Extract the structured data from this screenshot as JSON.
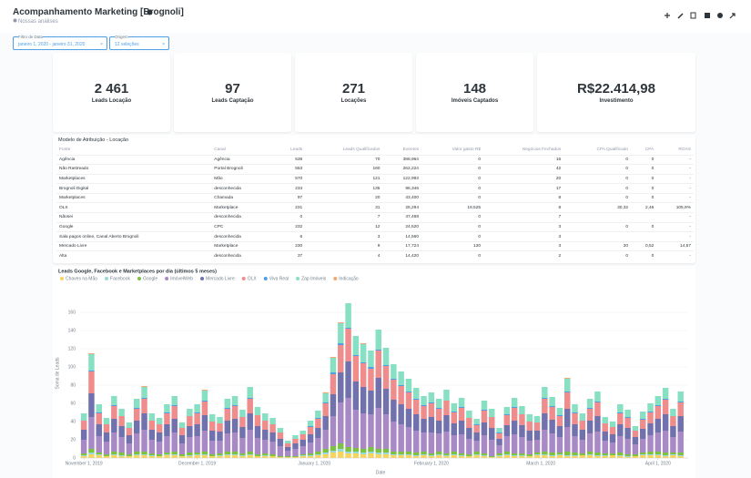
{
  "header": {
    "title": "Acompanhamento Marketing [Brognoli]",
    "subtitle": "Nossas análises"
  },
  "filters": [
    {
      "label": "Filtro de Data",
      "value": "janeiro 1, 2020 - janeiro 31, 2020"
    },
    {
      "label": "Origem",
      "value": "12 seleções"
    }
  ],
  "cards": [
    {
      "value": "2 461",
      "label": "Leads Locação"
    },
    {
      "value": "97",
      "label": "Leads Captação"
    },
    {
      "value": "271",
      "label": "Locações"
    },
    {
      "value": "148",
      "label": "Imóveis Captados"
    },
    {
      "value": "R$22.414,98",
      "label": "Investimento"
    }
  ],
  "table": {
    "title": "Modelo de Atribuição - Locação",
    "columns": [
      "Fonte",
      "Canal",
      "Leads",
      "Leads Qualificados",
      "Eventos",
      "Valor gasto R$",
      "Negócios Fechados",
      "CPA Qualificado",
      "CPA",
      "ROAS"
    ],
    "rows": [
      [
        "Agência",
        "Agência",
        "538",
        "70",
        "388,964",
        "0",
        "16",
        "0",
        "0",
        "-"
      ],
      [
        "Não Rastreado",
        "Portal Brognoli",
        "553",
        "160",
        "262,224",
        "0",
        "42",
        "0",
        "0",
        "-"
      ],
      [
        "Marketplaces",
        "Mão",
        "570",
        "121",
        "122,993",
        "0",
        "20",
        "0",
        "0",
        "-"
      ],
      [
        "Brognoli Digital",
        "desconhecida",
        "234",
        "135",
        "96,346",
        "0",
        "17",
        "0",
        "0",
        "-"
      ],
      [
        "Marketplaces",
        "Chamada",
        "97",
        "20",
        "43,400",
        "0",
        "8",
        "0",
        "0",
        "-"
      ],
      [
        "OLX",
        "Marketplace",
        "231",
        "31",
        "25,294",
        "19,525",
        "8",
        "30,32",
        "2,46",
        "105,9%"
      ],
      [
        "Nãosei",
        "desconhecida",
        "0",
        "7",
        "47,468",
        "0",
        "7",
        "",
        "",
        "-"
      ],
      [
        "Google",
        "CPC",
        "232",
        "12",
        "24,520",
        "0",
        "3",
        "0",
        "0",
        "-"
      ],
      [
        "Sala pagos online, Canal Aberto Brognoli",
        "desconhecida",
        "6",
        "3",
        "14,560",
        "0",
        "3",
        "",
        "",
        "-"
      ],
      [
        "Mercado Livre",
        "Marketplace",
        "230",
        "9",
        "17,724",
        "120",
        "3",
        "20",
        "0,52",
        "14,57"
      ],
      [
        "Alta",
        "desconhecida",
        "37",
        "4",
        "14,420",
        "0",
        "2",
        "0",
        "0",
        "-"
      ]
    ]
  },
  "chart_data": {
    "type": "stacked-bar",
    "title": "Leads Google, Facebook e Marketplaces por dia (últimos 5 meses)",
    "x_label": "Date",
    "y_label": "Soma de Leads",
    "x": [
      "2019-11-01",
      "2019-11-03",
      "2019-11-05",
      "2019-11-07",
      "2019-11-09",
      "2019-11-11",
      "2019-11-13",
      "2019-11-15",
      "2019-11-17",
      "2019-11-19",
      "2019-11-21",
      "2019-11-23",
      "2019-11-25",
      "2019-11-27",
      "2019-11-29",
      "2019-12-01",
      "2019-12-03",
      "2019-12-05",
      "2019-12-07",
      "2019-12-09",
      "2019-12-11",
      "2019-12-13",
      "2019-12-15",
      "2019-12-17",
      "2019-12-19",
      "2019-12-21",
      "2019-12-23",
      "2019-12-25",
      "2019-12-27",
      "2019-12-29",
      "2019-12-31",
      "2020-01-02",
      "2020-01-04",
      "2020-01-06",
      "2020-01-08",
      "2020-01-10",
      "2020-01-12",
      "2020-01-14",
      "2020-01-16",
      "2020-01-18",
      "2020-01-20",
      "2020-01-22",
      "2020-01-24",
      "2020-01-26",
      "2020-01-28",
      "2020-01-30",
      "2020-02-01",
      "2020-02-03",
      "2020-02-05",
      "2020-02-07",
      "2020-02-09",
      "2020-02-11",
      "2020-02-13",
      "2020-02-15",
      "2020-02-17",
      "2020-02-19",
      "2020-02-21",
      "2020-02-23",
      "2020-02-25",
      "2020-02-27",
      "2020-02-29",
      "2020-03-02",
      "2020-03-04",
      "2020-03-06",
      "2020-03-08",
      "2020-03-10",
      "2020-03-12",
      "2020-03-14",
      "2020-03-16",
      "2020-03-18",
      "2020-03-20",
      "2020-03-22",
      "2020-03-24",
      "2020-03-26",
      "2020-03-28",
      "2020-03-30",
      "2020-04-01",
      "2020-04-03",
      "2020-04-05",
      "2020-04-07"
    ],
    "xlim": [
      "2019-10-31",
      "2020-04-09"
    ],
    "xticks": [
      {
        "value": "2019-11-01",
        "label": "November 1, 2019"
      },
      {
        "value": "2019-12-01",
        "label": "December 1, 2019"
      },
      {
        "value": "2020-01-01",
        "label": "January 1, 2020"
      },
      {
        "value": "2020-02-01",
        "label": "February 1, 2020"
      },
      {
        "value": "2020-03-01",
        "label": "March 1, 2020"
      },
      {
        "value": "2020-04-01",
        "label": "April 1, 2020"
      }
    ],
    "ylim": [
      0,
      185
    ],
    "yticks": [
      0,
      20,
      40,
      60,
      80,
      100,
      120,
      140,
      160
    ],
    "grid": true,
    "series": [
      {
        "name": "Chaves na Mão",
        "color": "#f9d45c",
        "values": [
          2,
          4,
          3,
          2,
          3,
          2,
          2,
          3,
          3,
          2,
          2,
          3,
          3,
          2,
          2,
          3,
          3,
          2,
          2,
          3,
          3,
          2,
          3,
          2,
          2,
          2,
          1,
          1,
          1,
          2,
          2,
          3,
          4,
          6,
          7,
          5,
          5,
          4,
          5,
          4,
          4,
          3,
          3,
          3,
          2,
          3,
          2,
          3,
          2,
          3,
          2,
          2,
          3,
          2,
          1,
          2,
          3,
          2,
          2,
          2,
          3,
          3,
          2,
          3,
          2,
          2,
          3,
          3,
          2,
          2,
          3,
          2,
          1,
          2,
          3,
          3,
          3,
          2,
          3,
          2
        ]
      },
      {
        "name": "Facebook",
        "color": "#98d9d9",
        "values": [
          1,
          2,
          1,
          0,
          1,
          1,
          0,
          1,
          1,
          1,
          0,
          1,
          1,
          0,
          1,
          1,
          1,
          0,
          1,
          1,
          1,
          1,
          1,
          0,
          1,
          0,
          0,
          0,
          0,
          1,
          1,
          1,
          2,
          2,
          3,
          2,
          2,
          2,
          2,
          2,
          2,
          1,
          1,
          1,
          1,
          1,
          1,
          1,
          1,
          1,
          1,
          0,
          1,
          1,
          0,
          1,
          1,
          1,
          1,
          0,
          1,
          1,
          1,
          1,
          1,
          1,
          0,
          1,
          1,
          1,
          0,
          1,
          1,
          0,
          1,
          1,
          1,
          1,
          1,
          1
        ]
      },
      {
        "name": "Google",
        "color": "#7bc142",
        "values": [
          2,
          4,
          2,
          2,
          3,
          3,
          2,
          3,
          3,
          2,
          2,
          2,
          3,
          2,
          3,
          2,
          3,
          2,
          2,
          3,
          3,
          2,
          3,
          2,
          2,
          2,
          1,
          1,
          1,
          1,
          2,
          3,
          4,
          5,
          6,
          5,
          4,
          4,
          5,
          4,
          4,
          3,
          3,
          3,
          3,
          3,
          2,
          3,
          2,
          3,
          2,
          2,
          3,
          2,
          1,
          2,
          3,
          2,
          2,
          2,
          2,
          3,
          3,
          2,
          4,
          3,
          2,
          3,
          3,
          2,
          2,
          3,
          2,
          2,
          2,
          3,
          3,
          3,
          2,
          3
        ]
      },
      {
        "name": "ImóvelWeb",
        "color": "#a989c5",
        "values": [
          15,
          35,
          18,
          14,
          21,
          17,
          12,
          20,
          24,
          15,
          14,
          18,
          21,
          12,
          17,
          18,
          23,
          15,
          14,
          20,
          21,
          17,
          24,
          18,
          15,
          14,
          11,
          6,
          8,
          9,
          12,
          15,
          21,
          33,
          45,
          54,
          42,
          39,
          36,
          45,
          38,
          33,
          30,
          27,
          24,
          21,
          23,
          20,
          24,
          18,
          21,
          17,
          12,
          20,
          18,
          9,
          17,
          21,
          18,
          15,
          14,
          24,
          21,
          17,
          27,
          18,
          15,
          20,
          23,
          14,
          12,
          18,
          17,
          11,
          15,
          18,
          21,
          24,
          17,
          23
        ]
      },
      {
        "name": "Mercado Livre",
        "color": "#7172ad",
        "values": [
          11,
          26,
          13,
          10,
          15,
          12,
          9,
          14,
          18,
          11,
          10,
          13,
          15,
          9,
          12,
          13,
          17,
          11,
          10,
          14,
          15,
          12,
          18,
          13,
          11,
          10,
          8,
          4,
          6,
          7,
          9,
          11,
          15,
          24,
          33,
          40,
          31,
          29,
          26,
          33,
          28,
          24,
          22,
          20,
          18,
          15,
          17,
          14,
          18,
          13,
          15,
          12,
          9,
          14,
          13,
          7,
          12,
          15,
          13,
          11,
          10,
          18,
          15,
          12,
          20,
          13,
          11,
          14,
          17,
          10,
          9,
          13,
          12,
          8,
          11,
          13,
          15,
          18,
          12,
          17
        ]
      },
      {
        "name": "OLX",
        "color": "#ef8c8c",
        "values": [
          10,
          24,
          12,
          9,
          14,
          11,
          8,
          13,
          16,
          10,
          9,
          12,
          14,
          8,
          11,
          12,
          15,
          10,
          9,
          13,
          14,
          11,
          16,
          12,
          10,
          9,
          7,
          4,
          5,
          6,
          8,
          10,
          14,
          22,
          30,
          36,
          28,
          26,
          24,
          30,
          25,
          22,
          20,
          18,
          16,
          14,
          15,
          13,
          16,
          12,
          14,
          11,
          8,
          13,
          12,
          6,
          11,
          14,
          12,
          10,
          9,
          16,
          14,
          11,
          18,
          12,
          10,
          13,
          15,
          9,
          8,
          12,
          11,
          7,
          10,
          12,
          14,
          16,
          11,
          15
        ]
      },
      {
        "name": "Viva Real",
        "color": "#509ee3",
        "values": [
          0,
          1,
          1,
          0,
          1,
          0,
          0,
          1,
          1,
          0,
          0,
          1,
          1,
          0,
          0,
          1,
          1,
          0,
          0,
          1,
          1,
          0,
          1,
          0,
          0,
          0,
          0,
          0,
          0,
          0,
          1,
          1,
          1,
          2,
          2,
          1,
          1,
          1,
          2,
          1,
          1,
          1,
          1,
          1,
          1,
          1,
          1,
          1,
          0,
          1,
          1,
          0,
          1,
          1,
          0,
          1,
          1,
          1,
          0,
          0,
          0,
          1,
          1,
          1,
          1,
          1,
          0,
          1,
          1,
          0,
          0,
          1,
          1,
          0,
          1,
          1,
          1,
          1,
          0,
          1
        ]
      },
      {
        "name": "Zap Imóveis",
        "color": "#88e0c4",
        "values": [
          8,
          18,
          9,
          7,
          10,
          8,
          6,
          10,
          12,
          8,
          7,
          9,
          10,
          6,
          8,
          9,
          11,
          8,
          7,
          10,
          10,
          8,
          12,
          9,
          8,
          7,
          5,
          3,
          4,
          4,
          6,
          8,
          10,
          16,
          22,
          27,
          21,
          20,
          18,
          22,
          19,
          16,
          15,
          14,
          12,
          10,
          11,
          10,
          12,
          9,
          10,
          8,
          6,
          10,
          9,
          5,
          8,
          10,
          9,
          8,
          7,
          12,
          10,
          8,
          14,
          9,
          8,
          10,
          11,
          7,
          6,
          9,
          8,
          5,
          8,
          9,
          10,
          12,
          8,
          11
        ]
      },
      {
        "name": "Indicação",
        "color": "#f2a86f",
        "values": [
          0,
          1,
          0,
          0,
          0,
          0,
          0,
          0,
          1,
          0,
          0,
          0,
          0,
          0,
          0,
          0,
          1,
          0,
          0,
          0,
          0,
          0,
          0,
          0,
          0,
          0,
          0,
          0,
          0,
          0,
          0,
          0,
          1,
          1,
          1,
          0,
          0,
          1,
          0,
          0,
          0,
          0,
          0,
          0,
          0,
          0,
          0,
          0,
          0,
          0,
          0,
          0,
          0,
          0,
          0,
          0,
          0,
          0,
          0,
          0,
          0,
          0,
          0,
          0,
          1,
          0,
          0,
          0,
          0,
          0,
          0,
          0,
          0,
          0,
          0,
          0,
          0,
          0,
          0,
          0
        ]
      }
    ]
  }
}
